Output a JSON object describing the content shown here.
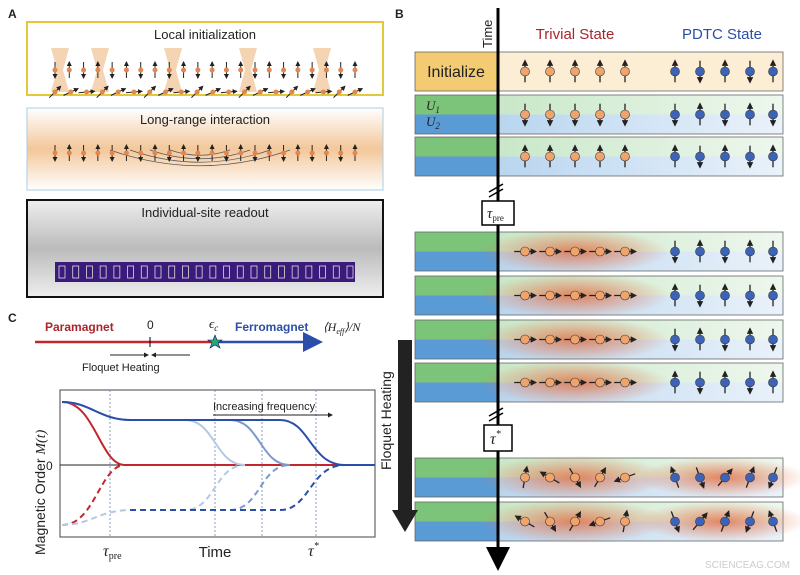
{
  "panel_a": {
    "label": "A",
    "local_initialization": "Local initialization",
    "long_range_interaction": "Long-range interaction",
    "individual_site_readout": "Individual-site readout"
  },
  "panel_b": {
    "label": "B",
    "time_axis": "Time",
    "trivial_state": "Trivial State",
    "pdtc_state": "PDTC State",
    "initialize": "Initialize",
    "u1": {
      "symbol": "U",
      "subscript": "1"
    },
    "u2": {
      "symbol": "U",
      "subscript": "2"
    },
    "tau_pre": {
      "symbol": "τ",
      "subscript": "pre"
    },
    "tau_star": {
      "symbol": "τ",
      "superscript": "*"
    },
    "floquet_heating": "Floquet Heating"
  },
  "panel_c": {
    "label": "C",
    "paramagnet": "Paramagnet",
    "zero": "0",
    "epsilon_c": {
      "symbol": "ϵ",
      "subscript": "c"
    },
    "ferromagnet": "Ferromagnet",
    "h_eff": {
      "open": "⟨H",
      "subscript": "eff",
      "close": "⟩/N"
    },
    "floquet_heating": "Floquet Heating",
    "increasing_frequency": "Increasing frequency",
    "y_axis": {
      "text": "Magnetic Order ",
      "symbol": "M(t)"
    },
    "y_zero": "0",
    "x_tau_pre": {
      "symbol": "τ",
      "subscript": "pre"
    },
    "x_axis": "Time",
    "x_tau_star": {
      "symbol": "τ",
      "superscript": "*"
    }
  },
  "watermark": "SCIENCEAG.COM"
}
